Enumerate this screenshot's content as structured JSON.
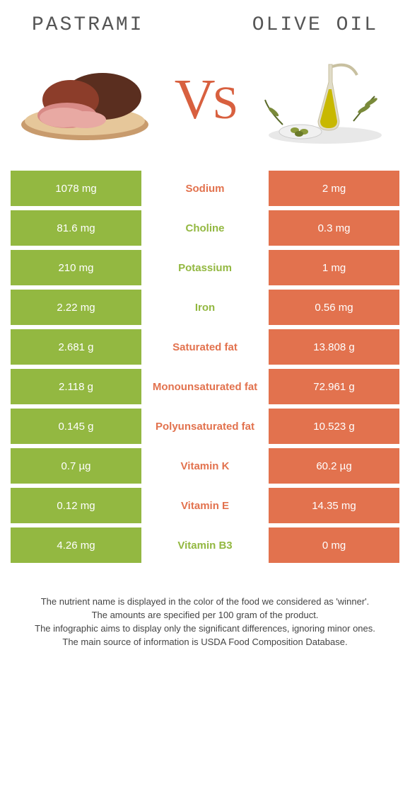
{
  "header": {
    "left_title": "PASTRAMI",
    "right_title": "OLIVE OIL"
  },
  "vs_label": {
    "v": "V",
    "s": "S"
  },
  "colors": {
    "left": "#93b841",
    "right": "#e2724e",
    "mid_green": "#93b841",
    "mid_orange": "#e2724e"
  },
  "rows": [
    {
      "left": "1078 mg",
      "label": "Sodium",
      "winner": "orange",
      "right": "2 mg"
    },
    {
      "left": "81.6 mg",
      "label": "Choline",
      "winner": "green",
      "right": "0.3 mg"
    },
    {
      "left": "210 mg",
      "label": "Potassium",
      "winner": "green",
      "right": "1 mg"
    },
    {
      "left": "2.22 mg",
      "label": "Iron",
      "winner": "green",
      "right": "0.56 mg"
    },
    {
      "left": "2.681 g",
      "label": "Saturated fat",
      "winner": "orange",
      "right": "13.808 g"
    },
    {
      "left": "2.118 g",
      "label": "Monounsaturated fat",
      "winner": "orange",
      "right": "72.961 g"
    },
    {
      "left": "0.145 g",
      "label": "Polyunsaturated fat",
      "winner": "orange",
      "right": "10.523 g"
    },
    {
      "left": "0.7 µg",
      "label": "Vitamin K",
      "winner": "orange",
      "right": "60.2 µg"
    },
    {
      "left": "0.12 mg",
      "label": "Vitamin E",
      "winner": "orange",
      "right": "14.35 mg"
    },
    {
      "left": "4.26 mg",
      "label": "Vitamin B3",
      "winner": "green",
      "right": "0 mg"
    }
  ],
  "footer": {
    "line1": "The nutrient name is displayed in the color of the food we considered as 'winner'.",
    "line2": "The amounts are specified per 100 gram of the product.",
    "line3": "The infographic aims to display only the significant differences, ignoring minor ones.",
    "line4": "The main source of information is USDA Food Composition Database."
  }
}
